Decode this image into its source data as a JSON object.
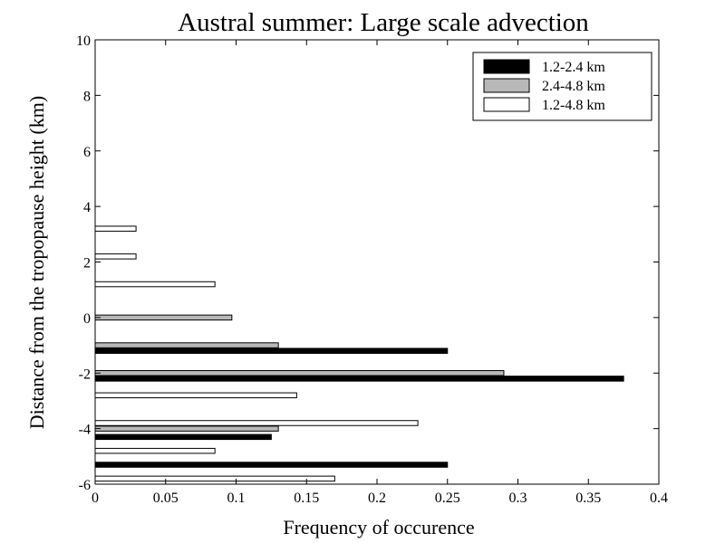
{
  "chart_data": {
    "type": "bar",
    "orientation": "horizontal",
    "title": "Austral summer: Large scale advection",
    "xlabel": "Frequency of occurence",
    "ylabel": "Distance from the tropopause height (km)",
    "xlim": [
      0,
      0.4
    ],
    "ylim": [
      -6,
      10
    ],
    "xticks": [
      "0",
      "0.05",
      "0.1",
      "0.15",
      "0.2",
      "0.25",
      "0.3",
      "0.35",
      "0.4"
    ],
    "yticks": [
      "-6",
      "-4",
      "-2",
      "0",
      "2",
      "4",
      "6",
      "8",
      "10"
    ],
    "grid": false,
    "legend_position": "top-right",
    "series": [
      {
        "name": "1.2-2.4 km",
        "color": "#000000",
        "points": [
          {
            "y": -5.3,
            "value": 0.25
          },
          {
            "y": -4.3,
            "value": 0.125
          },
          {
            "y": -2.2,
            "value": 0.375
          },
          {
            "y": -1.2,
            "value": 0.25
          }
        ]
      },
      {
        "name": "2.4-4.8 km",
        "color": "#b8b8b8",
        "points": [
          {
            "y": -4.0,
            "value": 0.13
          },
          {
            "y": -2.0,
            "value": 0.29
          },
          {
            "y": -1.0,
            "value": 0.13
          },
          {
            "y": 0.0,
            "value": 0.097
          }
        ]
      },
      {
        "name": "1.2-4.8 km",
        "color": "#ffffff",
        "points": [
          {
            "y": -5.8,
            "value": 0.17
          },
          {
            "y": -4.8,
            "value": 0.085
          },
          {
            "y": -3.8,
            "value": 0.229
          },
          {
            "y": -2.8,
            "value": 0.143
          },
          {
            "y": 1.2,
            "value": 0.085
          },
          {
            "y": 2.2,
            "value": 0.029
          },
          {
            "y": 3.2,
            "value": 0.029
          }
        ]
      }
    ]
  }
}
